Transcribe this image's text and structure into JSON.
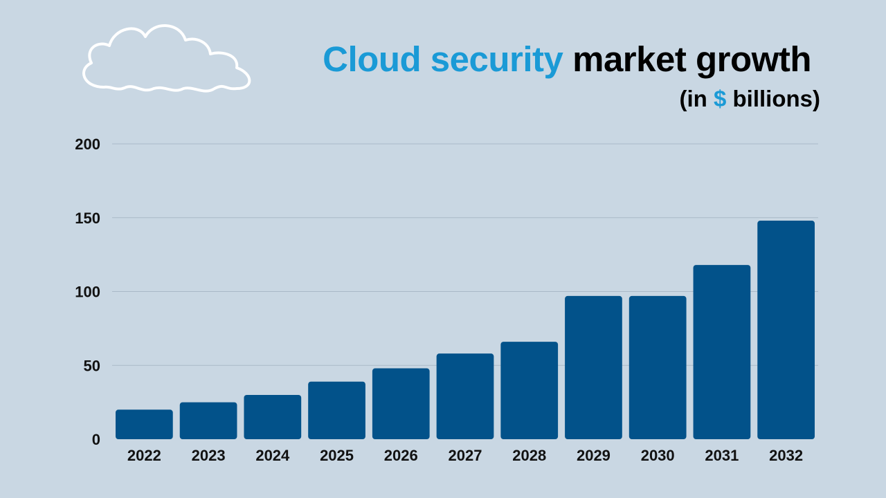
{
  "title": {
    "highlight": "Cloud security",
    "rest": "market growth",
    "subtitle_open": "(in",
    "subtitle_symbol": "$",
    "subtitle_close": "billions)"
  },
  "colors": {
    "background": "#c9d7e3",
    "bar": "#02528a",
    "accent": "#1a9ad6",
    "grid": "#a9b9c8"
  },
  "chart_data": {
    "type": "bar",
    "title": "Cloud security market growth",
    "ylabel": "in $ billions",
    "xlabel": "",
    "categories": [
      "2022",
      "2023",
      "2024",
      "2025",
      "2026",
      "2027",
      "2028",
      "2029",
      "2030",
      "2031",
      "2032"
    ],
    "values": [
      20,
      25,
      30,
      39,
      48,
      58,
      66,
      97,
      97,
      118,
      148
    ],
    "ylim": [
      0,
      200
    ],
    "yticks": [
      0,
      50,
      100,
      150,
      200
    ],
    "grid": true
  }
}
